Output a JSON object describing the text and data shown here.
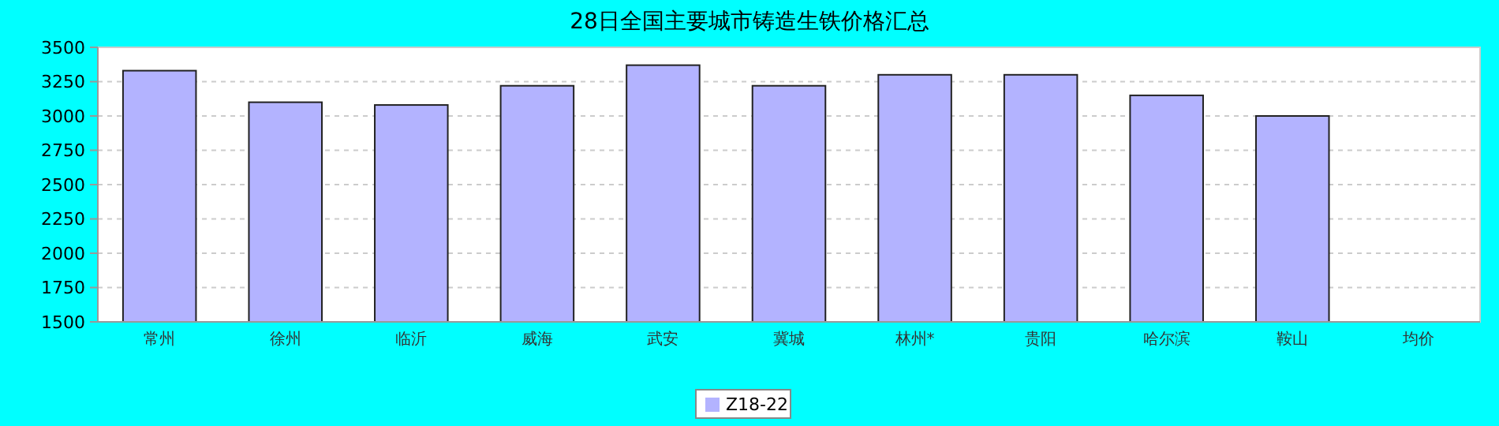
{
  "chart_data": {
    "type": "bar",
    "title": "28日全国主要城市铸造生铁价格汇总",
    "categories": [
      "常州",
      "徐州",
      "临沂",
      "威海",
      "武安",
      "冀城",
      "林州*",
      "贵阳",
      "哈尔滨",
      "鞍山",
      "均价"
    ],
    "series": [
      {
        "name": "Z18-22",
        "color": "#b3b3ff",
        "values": [
          3330,
          3100,
          3080,
          3220,
          3370,
          3220,
          3300,
          3300,
          3150,
          3000,
          null
        ]
      }
    ],
    "ylim": [
      1500,
      3500
    ],
    "yticks": [
      1500,
      1750,
      2000,
      2250,
      2500,
      2750,
      3000,
      3250,
      3500
    ],
    "grid": "y",
    "legend": "bottom"
  }
}
